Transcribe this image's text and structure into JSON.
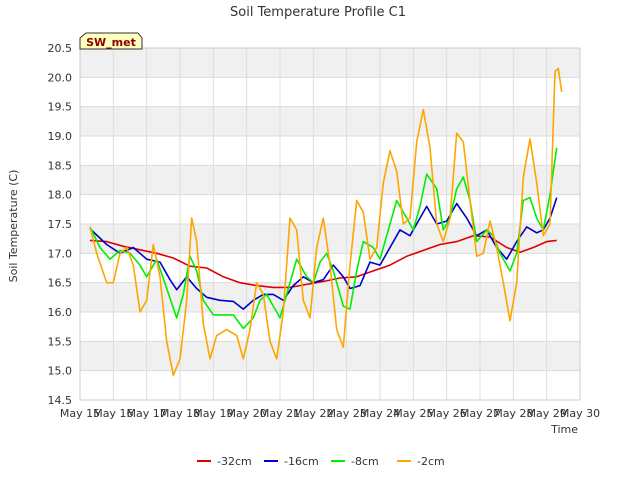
{
  "chart_data": {
    "type": "line",
    "title": "Soil Temperature Profile C1",
    "badge": "SW_met",
    "xlabel": "Time",
    "ylabel": "Soil Temperature (C)",
    "ylim": [
      14.5,
      20.5
    ],
    "xlim": [
      15,
      30
    ],
    "yticks": [
      14.5,
      15.0,
      15.5,
      16.0,
      16.5,
      17.0,
      17.5,
      18.0,
      18.5,
      19.0,
      19.5,
      20.0,
      20.5
    ],
    "xticks": [
      {
        "v": 15,
        "label": "May 15"
      },
      {
        "v": 16,
        "label": "May 16"
      },
      {
        "v": 17,
        "label": "May 17"
      },
      {
        "v": 18,
        "label": "May 18"
      },
      {
        "v": 19,
        "label": "May 19"
      },
      {
        "v": 20,
        "label": "May 20"
      },
      {
        "v": 21,
        "label": "May 21"
      },
      {
        "v": 22,
        "label": "May 22"
      },
      {
        "v": 23,
        "label": "May 23"
      },
      {
        "v": 24,
        "label": "May 24"
      },
      {
        "v": 25,
        "label": "May 25"
      },
      {
        "v": 26,
        "label": "May 26"
      },
      {
        "v": 27,
        "label": "May 27"
      },
      {
        "v": 28,
        "label": "May 28"
      },
      {
        "v": 29,
        "label": "May 29"
      },
      {
        "v": 30,
        "label": "May 30"
      }
    ],
    "grid": true,
    "legend": "bottom",
    "series": [
      {
        "name": "-32cm",
        "color": "#dd0000",
        "points": [
          [
            15.3,
            17.22
          ],
          [
            15.8,
            17.2
          ],
          [
            16.3,
            17.12
          ],
          [
            16.8,
            17.06
          ],
          [
            17.3,
            17.0
          ],
          [
            17.8,
            16.92
          ],
          [
            18.3,
            16.78
          ],
          [
            18.8,
            16.75
          ],
          [
            19.3,
            16.6
          ],
          [
            19.8,
            16.5
          ],
          [
            20.3,
            16.45
          ],
          [
            20.8,
            16.42
          ],
          [
            21.3,
            16.42
          ],
          [
            21.8,
            16.47
          ],
          [
            22.3,
            16.52
          ],
          [
            22.8,
            16.58
          ],
          [
            23.3,
            16.6
          ],
          [
            23.8,
            16.7
          ],
          [
            24.3,
            16.8
          ],
          [
            24.8,
            16.95
          ],
          [
            25.3,
            17.05
          ],
          [
            25.8,
            17.15
          ],
          [
            26.3,
            17.2
          ],
          [
            26.8,
            17.3
          ],
          [
            27.3,
            17.28
          ],
          [
            27.8,
            17.1
          ],
          [
            28.2,
            17.02
          ],
          [
            28.6,
            17.1
          ],
          [
            29.0,
            17.2
          ],
          [
            29.3,
            17.22
          ]
        ]
      },
      {
        "name": "-16cm",
        "color": "#0000cc",
        "points": [
          [
            15.3,
            17.42
          ],
          [
            15.8,
            17.15
          ],
          [
            16.2,
            17.0
          ],
          [
            16.6,
            17.1
          ],
          [
            17.0,
            16.9
          ],
          [
            17.4,
            16.85
          ],
          [
            17.7,
            16.55
          ],
          [
            17.9,
            16.38
          ],
          [
            18.2,
            16.6
          ],
          [
            18.5,
            16.4
          ],
          [
            18.8,
            16.25
          ],
          [
            19.2,
            16.2
          ],
          [
            19.6,
            16.18
          ],
          [
            19.9,
            16.05
          ],
          [
            20.2,
            16.2
          ],
          [
            20.5,
            16.3
          ],
          [
            20.8,
            16.3
          ],
          [
            21.1,
            16.2
          ],
          [
            21.4,
            16.45
          ],
          [
            21.7,
            16.6
          ],
          [
            22.0,
            16.5
          ],
          [
            22.3,
            16.55
          ],
          [
            22.6,
            16.8
          ],
          [
            22.9,
            16.6
          ],
          [
            23.1,
            16.4
          ],
          [
            23.4,
            16.45
          ],
          [
            23.7,
            16.85
          ],
          [
            24.0,
            16.8
          ],
          [
            24.3,
            17.1
          ],
          [
            24.6,
            17.4
          ],
          [
            24.9,
            17.3
          ],
          [
            25.2,
            17.6
          ],
          [
            25.4,
            17.8
          ],
          [
            25.7,
            17.5
          ],
          [
            26.0,
            17.55
          ],
          [
            26.3,
            17.85
          ],
          [
            26.6,
            17.6
          ],
          [
            26.9,
            17.3
          ],
          [
            27.2,
            17.4
          ],
          [
            27.5,
            17.1
          ],
          [
            27.8,
            16.9
          ],
          [
            28.1,
            17.2
          ],
          [
            28.4,
            17.45
          ],
          [
            28.7,
            17.35
          ],
          [
            28.9,
            17.4
          ],
          [
            29.1,
            17.6
          ],
          [
            29.3,
            17.95
          ]
        ]
      },
      {
        "name": "-8cm",
        "color": "#00ee00",
        "points": [
          [
            15.3,
            17.45
          ],
          [
            15.6,
            17.1
          ],
          [
            15.9,
            16.9
          ],
          [
            16.2,
            17.05
          ],
          [
            16.5,
            17.0
          ],
          [
            16.8,
            16.8
          ],
          [
            17.0,
            16.6
          ],
          [
            17.3,
            16.9
          ],
          [
            17.6,
            16.4
          ],
          [
            17.9,
            15.9
          ],
          [
            18.1,
            16.3
          ],
          [
            18.3,
            16.95
          ],
          [
            18.5,
            16.7
          ],
          [
            18.7,
            16.2
          ],
          [
            19.0,
            15.95
          ],
          [
            19.3,
            15.95
          ],
          [
            19.6,
            15.95
          ],
          [
            19.9,
            15.72
          ],
          [
            20.2,
            15.9
          ],
          [
            20.4,
            16.2
          ],
          [
            20.6,
            16.3
          ],
          [
            20.8,
            16.1
          ],
          [
            21.0,
            15.9
          ],
          [
            21.3,
            16.5
          ],
          [
            21.5,
            16.9
          ],
          [
            21.8,
            16.6
          ],
          [
            22.0,
            16.5
          ],
          [
            22.2,
            16.85
          ],
          [
            22.4,
            17.0
          ],
          [
            22.6,
            16.7
          ],
          [
            22.9,
            16.1
          ],
          [
            23.1,
            16.05
          ],
          [
            23.3,
            16.7
          ],
          [
            23.5,
            17.2
          ],
          [
            23.8,
            17.1
          ],
          [
            24.0,
            16.9
          ],
          [
            24.2,
            17.3
          ],
          [
            24.5,
            17.9
          ],
          [
            24.8,
            17.6
          ],
          [
            25.0,
            17.4
          ],
          [
            25.2,
            17.8
          ],
          [
            25.4,
            18.35
          ],
          [
            25.7,
            18.1
          ],
          [
            25.9,
            17.4
          ],
          [
            26.1,
            17.6
          ],
          [
            26.3,
            18.1
          ],
          [
            26.5,
            18.3
          ],
          [
            26.7,
            17.9
          ],
          [
            26.9,
            17.2
          ],
          [
            27.2,
            17.4
          ],
          [
            27.4,
            17.3
          ],
          [
            27.6,
            17.0
          ],
          [
            27.9,
            16.7
          ],
          [
            28.1,
            17.0
          ],
          [
            28.3,
            17.9
          ],
          [
            28.5,
            17.95
          ],
          [
            28.7,
            17.6
          ],
          [
            28.9,
            17.4
          ],
          [
            29.1,
            18.0
          ],
          [
            29.3,
            18.8
          ]
        ]
      },
      {
        "name": "-2cm",
        "color": "#ffa500",
        "points": [
          [
            15.3,
            17.45
          ],
          [
            15.5,
            17.0
          ],
          [
            15.8,
            16.5
          ],
          [
            16.0,
            16.5
          ],
          [
            16.2,
            17.0
          ],
          [
            16.4,
            17.1
          ],
          [
            16.6,
            16.8
          ],
          [
            16.8,
            16.0
          ],
          [
            17.0,
            16.2
          ],
          [
            17.2,
            17.15
          ],
          [
            17.4,
            16.6
          ],
          [
            17.6,
            15.5
          ],
          [
            17.8,
            14.92
          ],
          [
            18.0,
            15.2
          ],
          [
            18.2,
            16.2
          ],
          [
            18.35,
            17.6
          ],
          [
            18.5,
            17.2
          ],
          [
            18.7,
            15.8
          ],
          [
            18.9,
            15.2
          ],
          [
            19.1,
            15.6
          ],
          [
            19.4,
            15.7
          ],
          [
            19.7,
            15.6
          ],
          [
            19.9,
            15.2
          ],
          [
            20.1,
            15.7
          ],
          [
            20.3,
            16.5
          ],
          [
            20.5,
            16.3
          ],
          [
            20.7,
            15.5
          ],
          [
            20.9,
            15.2
          ],
          [
            21.1,
            16.0
          ],
          [
            21.3,
            17.6
          ],
          [
            21.5,
            17.4
          ],
          [
            21.7,
            16.2
          ],
          [
            21.9,
            15.9
          ],
          [
            22.1,
            17.1
          ],
          [
            22.3,
            17.6
          ],
          [
            22.5,
            16.8
          ],
          [
            22.7,
            15.7
          ],
          [
            22.9,
            15.4
          ],
          [
            23.1,
            16.8
          ],
          [
            23.3,
            17.9
          ],
          [
            23.5,
            17.7
          ],
          [
            23.7,
            16.9
          ],
          [
            23.9,
            17.1
          ],
          [
            24.1,
            18.2
          ],
          [
            24.3,
            18.75
          ],
          [
            24.5,
            18.4
          ],
          [
            24.7,
            17.5
          ],
          [
            24.9,
            17.6
          ],
          [
            25.1,
            18.9
          ],
          [
            25.3,
            19.45
          ],
          [
            25.5,
            18.8
          ],
          [
            25.7,
            17.5
          ],
          [
            25.9,
            17.2
          ],
          [
            26.1,
            17.6
          ],
          [
            26.3,
            19.05
          ],
          [
            26.5,
            18.9
          ],
          [
            26.7,
            17.9
          ],
          [
            26.9,
            16.95
          ],
          [
            27.1,
            17.0
          ],
          [
            27.3,
            17.55
          ],
          [
            27.5,
            17.1
          ],
          [
            27.7,
            16.5
          ],
          [
            27.9,
            15.85
          ],
          [
            28.1,
            16.5
          ],
          [
            28.3,
            18.3
          ],
          [
            28.5,
            18.95
          ],
          [
            28.7,
            18.2
          ],
          [
            28.9,
            17.3
          ],
          [
            29.1,
            17.5
          ],
          [
            29.25,
            20.1
          ],
          [
            29.35,
            20.15
          ],
          [
            29.45,
            19.75
          ]
        ]
      }
    ]
  }
}
